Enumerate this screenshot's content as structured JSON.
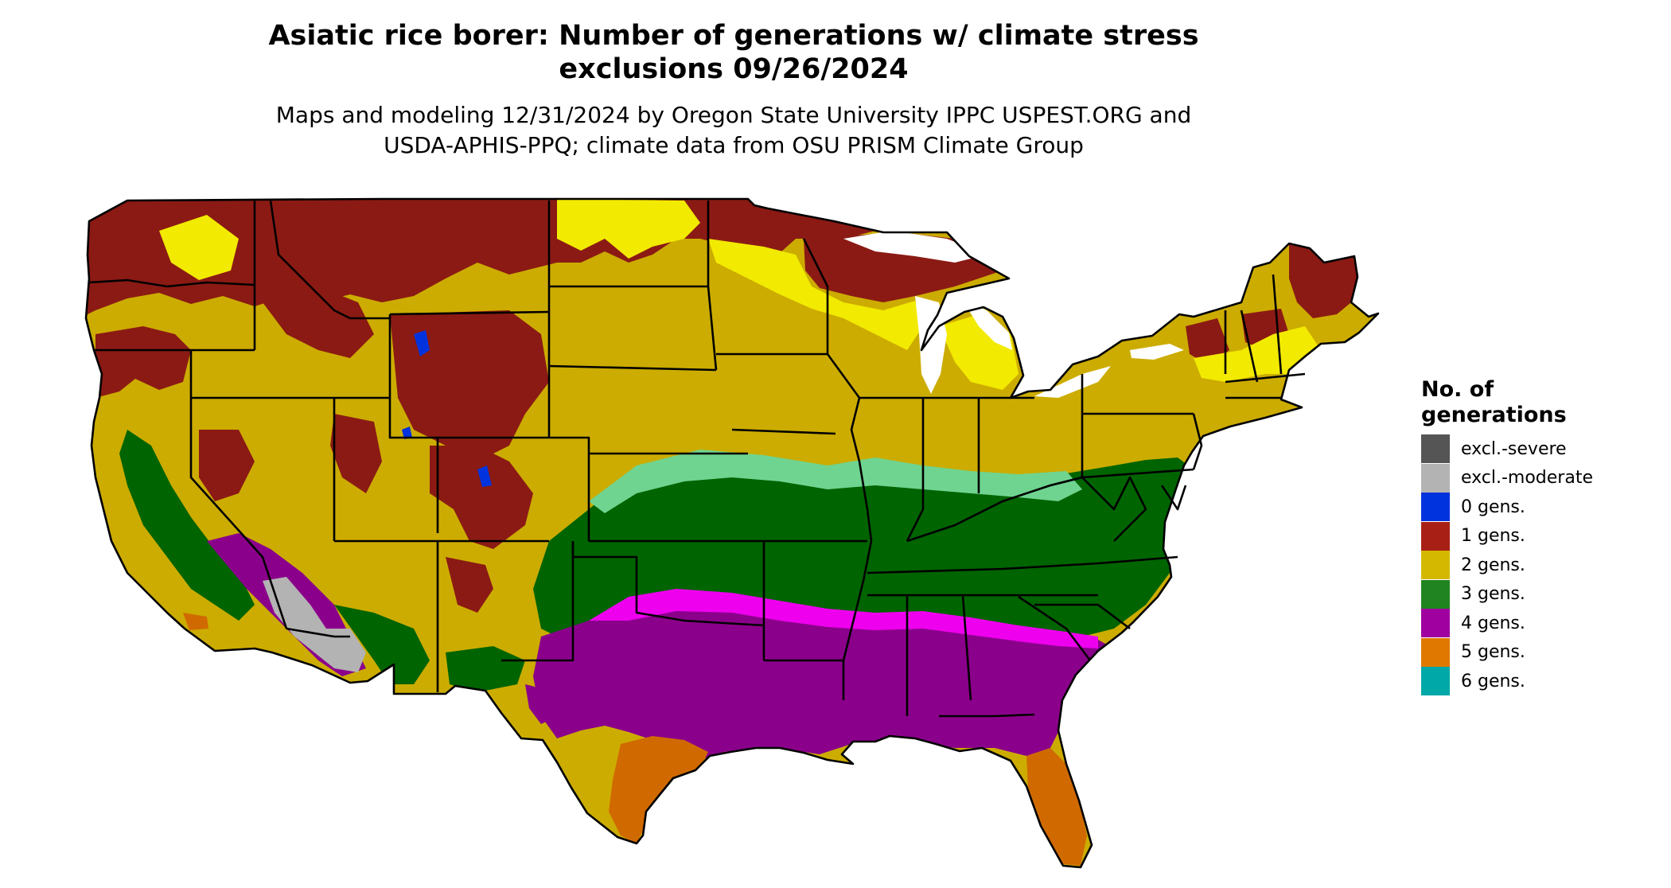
{
  "title": {
    "line1": "Asiatic rice borer: Number of generations w/ climate stress",
    "line2": "exclusions 09/26/2024"
  },
  "subtitle": {
    "line1": "Maps and modeling 12/31/2024 by Oregon State University IPPC USPEST.ORG and",
    "line2": "USDA-APHIS-PPQ; climate data from OSU PRISM Climate Group"
  },
  "legend": {
    "title_line1": "No. of",
    "title_line2": "generations",
    "items": [
      {
        "label": "excl.-severe",
        "color": "#555555"
      },
      {
        "label": "excl.-moderate",
        "color": "#b3b3b3"
      },
      {
        "label": "0 gens.",
        "color": "#0033dd"
      },
      {
        "label": "1 gens.",
        "color": "#a82015"
      },
      {
        "label": "2 gens.",
        "color": "#d4b800"
      },
      {
        "label": "3 gens.",
        "color": "#208520"
      },
      {
        "label": "4 gens.",
        "color": "#a000a0"
      },
      {
        "label": "5 gens.",
        "color": "#e07800"
      },
      {
        "label": "6 gens.",
        "color": "#00a8a8"
      }
    ]
  },
  "map_colors": {
    "excl_moderate": "#b3b3b3",
    "gen0": "#0033dd",
    "gen1": "#8b1a14",
    "gen2": "#ccac00",
    "gen2_light": "#f2ea00",
    "gen3": "#006400",
    "gen3_light": "#6fd48f",
    "gen4": "#8b008b",
    "gen4_light": "#ee00ee",
    "gen5": "#d06a00",
    "gen5_light": "#f0a050",
    "gen6": "#00c8d8"
  }
}
